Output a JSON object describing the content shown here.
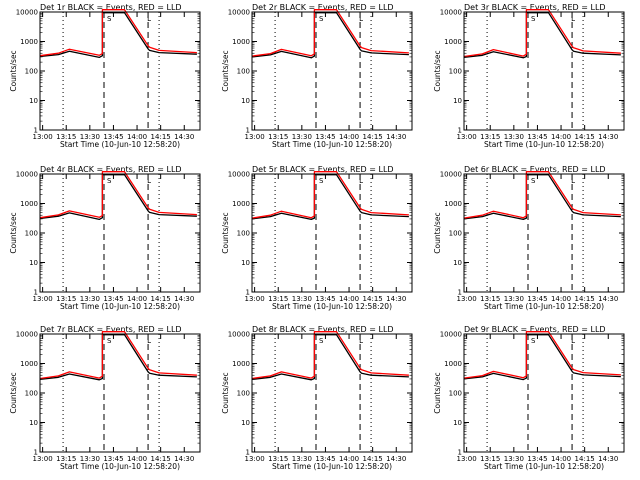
{
  "chart_data": {
    "type": "line",
    "layout": "3x3 grid",
    "xlabel": "Start Time (10-Jun-10 12:58:20)",
    "ylabel": "Counts/sec",
    "yscale": "log",
    "ylim": [
      1,
      10000
    ],
    "yticks": [
      "1",
      "10",
      "100",
      "1000",
      "10000"
    ],
    "xlim": [
      "12:58:20",
      "14:40:00"
    ],
    "xticks": [
      "13:00",
      "13:15",
      "13:30",
      "13:45",
      "14:00",
      "14:15",
      "14:30"
    ],
    "colors": {
      "events": "#000000",
      "lld": "#ff0000"
    },
    "event_markers": {
      "dashed": [
        "13:39",
        "14:07"
      ],
      "dotted": [
        "13:13",
        "14:14"
      ]
    },
    "panel_markers": [
      "S",
      "L"
    ],
    "series_names": [
      "Events",
      "LLD"
    ],
    "panels": [
      {
        "title": "Det 1r BLACK = Events, RED = LLD",
        "series": [
          {
            "name": "Events",
            "time": [
              "12:58:20",
              "13:10",
              "13:17",
              "13:36",
              "13:38",
              "13:38",
              "13:52",
              "14:07",
              "14:08",
              "14:14",
              "14:38"
            ],
            "values": [
              310,
              360,
              470,
              290,
              330,
              9500,
              9500,
              560,
              500,
              420,
              370
            ]
          },
          {
            "name": "LLD",
            "time": [
              "12:58:20",
              "13:10",
              "13:17",
              "13:36",
              "13:38",
              "13:38",
              "13:52",
              "14:07",
              "14:08",
              "14:14",
              "14:38"
            ],
            "values": [
              330,
              400,
              550,
              340,
              390,
              12000,
              12000,
              720,
              640,
              500,
              420
            ]
          }
        ]
      },
      {
        "title": "Det 2r BLACK = Events, RED = LLD",
        "series": [
          {
            "name": "Events",
            "time": [
              "12:58:20",
              "13:10",
              "13:17",
              "13:36",
              "13:38",
              "13:38",
              "13:52",
              "14:07",
              "14:08",
              "14:14",
              "14:38"
            ],
            "values": [
              300,
              350,
              460,
              280,
              320,
              9500,
              9500,
              540,
              480,
              410,
              360
            ]
          },
          {
            "name": "LLD",
            "time": [
              "12:58:20",
              "13:10",
              "13:17",
              "13:36",
              "13:38",
              "13:38",
              "13:52",
              "14:07",
              "14:08",
              "14:14",
              "14:38"
            ],
            "values": [
              320,
              390,
              540,
              330,
              380,
              12000,
              12000,
              700,
              620,
              490,
              410
            ]
          }
        ]
      },
      {
        "title": "Det 3r BLACK = Events, RED = LLD",
        "series": [
          {
            "name": "Events",
            "time": [
              "12:58:20",
              "13:10",
              "13:17",
              "13:36",
              "13:38",
              "13:38",
              "13:52",
              "14:07",
              "14:08",
              "14:14",
              "14:38"
            ],
            "values": [
              290,
              340,
              450,
              280,
              310,
              9500,
              9500,
              520,
              470,
              400,
              350
            ]
          },
          {
            "name": "LLD",
            "time": [
              "12:58:20",
              "13:10",
              "13:17",
              "13:36",
              "13:38",
              "13:38",
              "13:52",
              "14:07",
              "14:08",
              "14:14",
              "14:38"
            ],
            "values": [
              310,
              380,
              530,
              320,
              370,
              12000,
              12000,
              690,
              610,
              480,
              400
            ]
          }
        ]
      },
      {
        "title": "Det 4r BLACK = Events, RED = LLD",
        "series": [
          {
            "name": "Events",
            "time": [
              "12:58:20",
              "13:10",
              "13:17",
              "13:36",
              "13:38",
              "13:38",
              "13:52",
              "14:07",
              "14:08",
              "14:14",
              "14:38"
            ],
            "values": [
              310,
              370,
              480,
              290,
              330,
              9500,
              9500,
              560,
              500,
              420,
              370
            ]
          },
          {
            "name": "LLD",
            "time": [
              "12:58:20",
              "13:10",
              "13:17",
              "13:36",
              "13:38",
              "13:38",
              "13:52",
              "14:07",
              "14:08",
              "14:14",
              "14:38"
            ],
            "values": [
              330,
              410,
              560,
              340,
              390,
              12000,
              12000,
              720,
              640,
              500,
              420
            ]
          }
        ]
      },
      {
        "title": "Det 5r BLACK = Events, RED = LLD",
        "series": [
          {
            "name": "Events",
            "time": [
              "12:58:20",
              "13:10",
              "13:17",
              "13:36",
              "13:38",
              "13:38",
              "13:52",
              "14:07",
              "14:08",
              "14:14",
              "14:38"
            ],
            "values": [
              300,
              360,
              470,
              290,
              320,
              9500,
              9500,
              550,
              490,
              410,
              360
            ]
          },
          {
            "name": "LLD",
            "time": [
              "12:58:20",
              "13:10",
              "13:17",
              "13:36",
              "13:38",
              "13:38",
              "13:52",
              "14:07",
              "14:08",
              "14:14",
              "14:38"
            ],
            "values": [
              320,
              400,
              550,
              330,
              380,
              12000,
              12000,
              710,
              630,
              490,
              410
            ]
          }
        ]
      },
      {
        "title": "Det 6r BLACK = Events, RED = LLD",
        "series": [
          {
            "name": "Events",
            "time": [
              "12:58:20",
              "13:10",
              "13:17",
              "13:36",
              "13:38",
              "13:38",
              "13:52",
              "14:07",
              "14:08",
              "14:14",
              "14:38"
            ],
            "values": [
              300,
              360,
              470,
              290,
              320,
              9500,
              9500,
              550,
              490,
              410,
              360
            ]
          },
          {
            "name": "LLD",
            "time": [
              "12:58:20",
              "13:10",
              "13:17",
              "13:36",
              "13:38",
              "13:38",
              "13:52",
              "14:07",
              "14:08",
              "14:14",
              "14:38"
            ],
            "values": [
              320,
              400,
              550,
              330,
              380,
              12000,
              12000,
              710,
              630,
              490,
              410
            ]
          }
        ]
      },
      {
        "title": "Det 7r BLACK = Events, RED = LLD",
        "series": [
          {
            "name": "Events",
            "time": [
              "12:58:20",
              "13:10",
              "13:17",
              "13:36",
              "13:38",
              "13:38",
              "13:52",
              "14:07",
              "14:08",
              "14:14",
              "14:38"
            ],
            "values": [
              290,
              340,
              440,
              280,
              310,
              9500,
              9500,
              520,
              470,
              400,
              350
            ]
          },
          {
            "name": "LLD",
            "time": [
              "12:58:20",
              "13:10",
              "13:17",
              "13:36",
              "13:38",
              "13:38",
              "13:52",
              "14:07",
              "14:08",
              "14:14",
              "14:38"
            ],
            "values": [
              310,
              380,
              520,
              320,
              370,
              12000,
              12000,
              690,
              610,
              480,
              400
            ]
          }
        ]
      },
      {
        "title": "Det 8r BLACK = Events, RED = LLD",
        "series": [
          {
            "name": "Events",
            "time": [
              "12:58:20",
              "13:10",
              "13:17",
              "13:36",
              "13:38",
              "13:38",
              "13:52",
              "14:07",
              "14:08",
              "14:14",
              "14:38"
            ],
            "values": [
              290,
              340,
              440,
              280,
              310,
              9500,
              9500,
              520,
              470,
              400,
              350
            ]
          },
          {
            "name": "LLD",
            "time": [
              "12:58:20",
              "13:10",
              "13:17",
              "13:36",
              "13:38",
              "13:38",
              "13:52",
              "14:07",
              "14:08",
              "14:14",
              "14:38"
            ],
            "values": [
              310,
              380,
              520,
              320,
              370,
              12000,
              12000,
              690,
              610,
              480,
              400
            ]
          }
        ]
      },
      {
        "title": "Det 9r BLACK = Events, RED = LLD",
        "series": [
          {
            "name": "Events",
            "time": [
              "12:58:20",
              "13:10",
              "13:17",
              "13:36",
              "13:38",
              "13:38",
              "13:52",
              "14:07",
              "14:08",
              "14:14",
              "14:38"
            ],
            "values": [
              300,
              350,
              460,
              285,
              320,
              9500,
              9500,
              540,
              480,
              410,
              360
            ]
          },
          {
            "name": "LLD",
            "time": [
              "12:58:20",
              "13:10",
              "13:17",
              "13:36",
              "13:38",
              "13:38",
              "13:52",
              "14:07",
              "14:08",
              "14:14",
              "14:38"
            ],
            "values": [
              320,
              390,
              540,
              330,
              380,
              12000,
              12000,
              700,
              620,
              490,
              410
            ]
          }
        ]
      }
    ]
  }
}
